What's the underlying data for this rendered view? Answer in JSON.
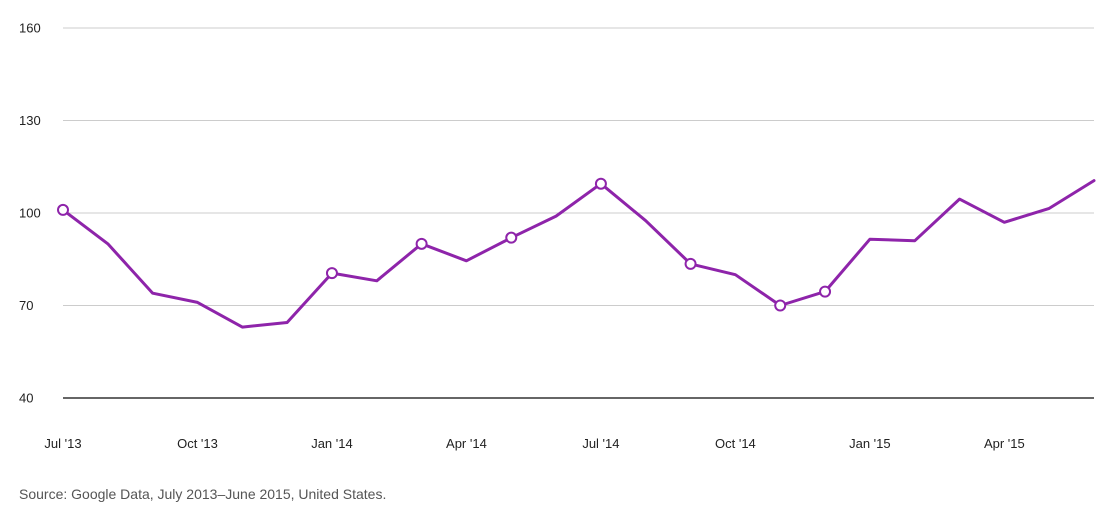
{
  "chart_data": {
    "type": "line",
    "x": [
      "2013-07",
      "2013-08",
      "2013-09",
      "2013-10",
      "2013-11",
      "2013-12",
      "2014-01",
      "2014-02",
      "2014-03",
      "2014-04",
      "2014-05",
      "2014-06",
      "2014-07",
      "2014-08",
      "2014-09",
      "2014-10",
      "2014-11",
      "2014-12",
      "2015-01",
      "2015-02",
      "2015-03",
      "2015-04",
      "2015-05",
      "2015-06"
    ],
    "series": [
      {
        "values": [
          101,
          90,
          74,
          71,
          63,
          64.5,
          80.5,
          78,
          90,
          84.5,
          92,
          99,
          109.5,
          97.5,
          83.5,
          80,
          70,
          74.5,
          91.5,
          91,
          104.5,
          97,
          101.5,
          110.5
        ],
        "color": "#8e24aa",
        "marked_points": [
          0,
          6,
          8,
          10,
          12,
          14,
          16,
          17
        ]
      }
    ],
    "xticks": [
      {
        "index": 0,
        "label": "Jul '13"
      },
      {
        "index": 3,
        "label": "Oct '13"
      },
      {
        "index": 6,
        "label": "Jan '14"
      },
      {
        "index": 9,
        "label": "Apr '14"
      },
      {
        "index": 12,
        "label": "Jul '14"
      },
      {
        "index": 15,
        "label": "Oct '14"
      },
      {
        "index": 18,
        "label": "Jan '15"
      },
      {
        "index": 21,
        "label": "Apr '15"
      }
    ],
    "yticks": [
      40,
      70,
      100,
      130,
      160
    ],
    "ylim": [
      40,
      160
    ],
    "grid": true,
    "title": "",
    "xlabel": "",
    "ylabel": "",
    "colors": {
      "line": "#8e24aa",
      "grid": "#cccccc",
      "baseline": "#333333"
    }
  },
  "source": "Source: Google Data, July 2013–June 2015, United States."
}
